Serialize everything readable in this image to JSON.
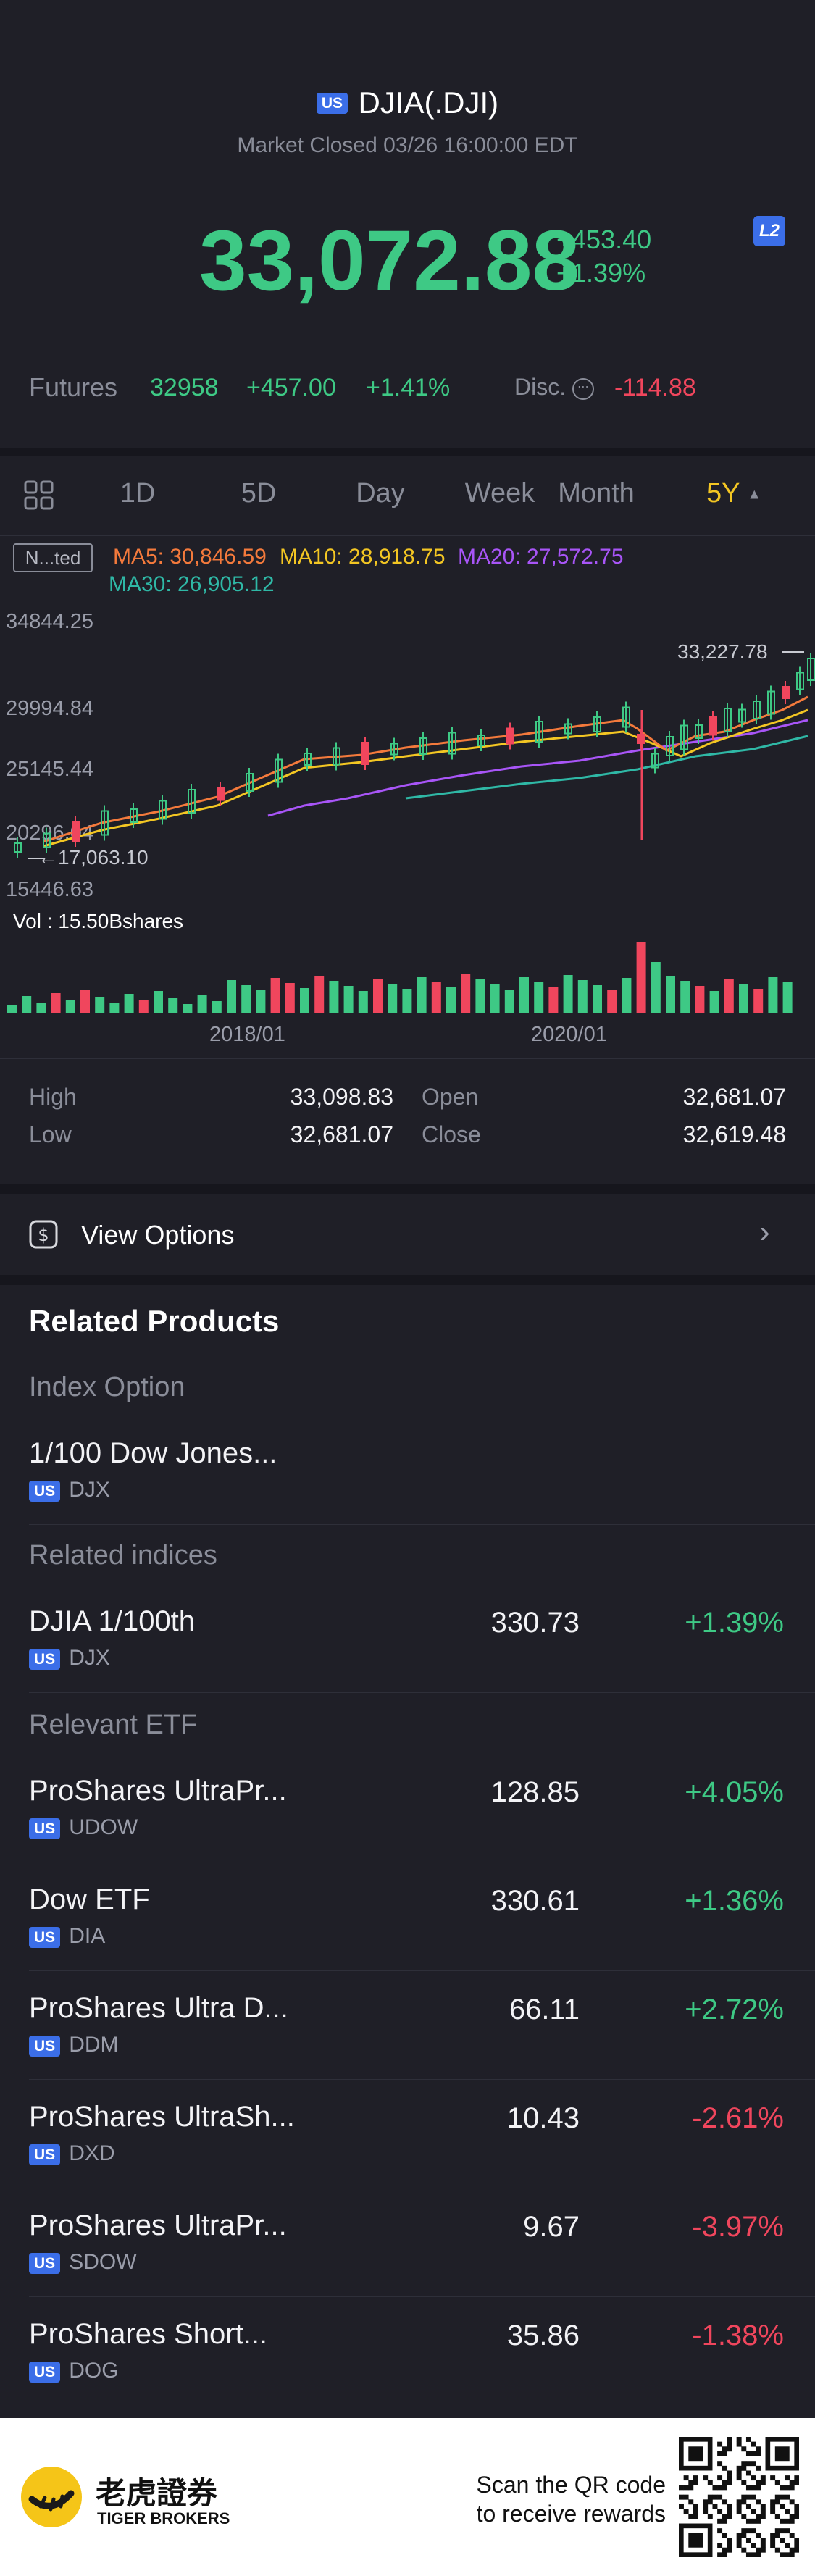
{
  "header": {
    "market_badge": "US",
    "symbol": "DJIA(.DJI)",
    "status": "Market Closed 03/26 16:00:00 EDT",
    "price": "33,072.88",
    "change": "+453.40",
    "change_pct": "+1.39%",
    "level_badge": "L2"
  },
  "futures": {
    "label": "Futures",
    "price": "32958",
    "change": "+457.00",
    "change_pct": "+1.41%",
    "disc_label": "Disc.",
    "disc_value": "-114.88"
  },
  "timeframes": {
    "items": [
      "1D",
      "5D",
      "Day",
      "Week",
      "Month",
      "5Y"
    ],
    "selected": "5Y"
  },
  "indicators": {
    "mode": "N...ted",
    "ma5": "MA5: 30,846.59",
    "ma10": "MA10: 28,918.75",
    "ma20": "MA20: 27,572.75",
    "ma30": "MA30: 26,905.12"
  },
  "chart_data": {
    "type": "candlestick",
    "y_ticks": [
      "34844.25",
      "29994.84",
      "25145.44",
      "20296.04",
      "15446.63"
    ],
    "ylim": [
      15446.63,
      34844.25
    ],
    "x_ticks": [
      "2018/01",
      "2020/01"
    ],
    "high_marker": "33,227.78",
    "low_marker": "17,063.10",
    "volume_label": "Vol : 15.50Bshares",
    "ma_colors": {
      "ma5": "#f47a3c",
      "ma10": "#f3c623",
      "ma20": "#a855f7",
      "ma30": "#2fb8a6"
    }
  },
  "stats": {
    "high_label": "High",
    "high_value": "33,098.83",
    "low_label": "Low",
    "low_value": "32,681.07",
    "open_label": "Open",
    "open_value": "32,681.07",
    "close_label": "Close",
    "close_value": "32,619.48"
  },
  "options": {
    "label": "View Options"
  },
  "related": {
    "title": "Related Products",
    "index_option_label": "Index Option",
    "index_option": {
      "name": "1/100 Dow Jones...",
      "badge": "US",
      "ticker": "DJX"
    },
    "indices_label": "Related indices",
    "indices": [
      {
        "name": "DJIA 1/100th",
        "badge": "US",
        "ticker": "DJX",
        "price": "330.73",
        "change": "+1.39%",
        "dir": "up"
      }
    ],
    "etf_label": "Relevant ETF",
    "etfs": [
      {
        "name": "ProShares UltraPr...",
        "badge": "US",
        "ticker": "UDOW",
        "price": "128.85",
        "change": "+4.05%",
        "dir": "up"
      },
      {
        "name": "Dow ETF",
        "badge": "US",
        "ticker": "DIA",
        "price": "330.61",
        "change": "+1.36%",
        "dir": "up"
      },
      {
        "name": "ProShares Ultra D...",
        "badge": "US",
        "ticker": "DDM",
        "price": "66.11",
        "change": "+2.72%",
        "dir": "up"
      },
      {
        "name": "ProShares UltraSh...",
        "badge": "US",
        "ticker": "DXD",
        "price": "10.43",
        "change": "-2.61%",
        "dir": "down"
      },
      {
        "name": "ProShares UltraPr...",
        "badge": "US",
        "ticker": "SDOW",
        "price": "9.67",
        "change": "-3.97%",
        "dir": "down"
      },
      {
        "name": "ProShares Short...",
        "badge": "US",
        "ticker": "DOG",
        "price": "35.86",
        "change": "-1.38%",
        "dir": "down"
      }
    ]
  },
  "footer": {
    "brand_cn": "老虎證券",
    "brand_en": "TIGER BROKERS",
    "promo_line1": "Scan the QR code",
    "promo_line2": "to receive rewards"
  }
}
